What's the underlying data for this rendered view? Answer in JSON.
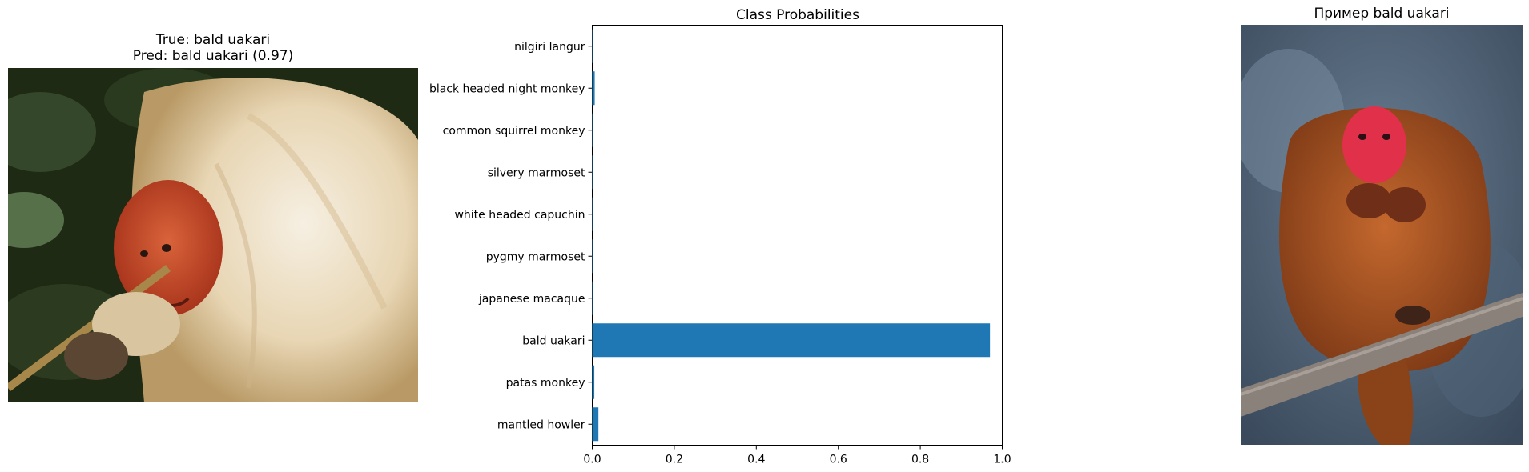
{
  "left_panel": {
    "title_line1": "True: bald uakari",
    "title_line2": "Pred: bald uakari (0.97)"
  },
  "right_panel": {
    "title": "Пример bald uakari"
  },
  "chart_data": {
    "type": "bar",
    "orientation": "horizontal",
    "title": "Class Probabilities",
    "xlabel": "",
    "ylabel": "",
    "xlim": [
      0,
      1
    ],
    "xticks": [
      0.0,
      0.2,
      0.4,
      0.6,
      0.8,
      1.0
    ],
    "xtick_labels": [
      "0.0",
      "0.2",
      "0.4",
      "0.6",
      "0.8",
      "1.0"
    ],
    "categories": [
      "nilgiri langur",
      "black headed night monkey",
      "common squirrel monkey",
      "silvery marmoset",
      "white headed capuchin",
      "pygmy marmoset",
      "japanese macaque",
      "bald uakari",
      "patas monkey",
      "mantled howler"
    ],
    "values": [
      0.001,
      0.006,
      0.002,
      0.001,
      0.001,
      0.001,
      0.001,
      0.97,
      0.005,
      0.015
    ],
    "bar_color": "#1f77b4",
    "grid": false
  }
}
